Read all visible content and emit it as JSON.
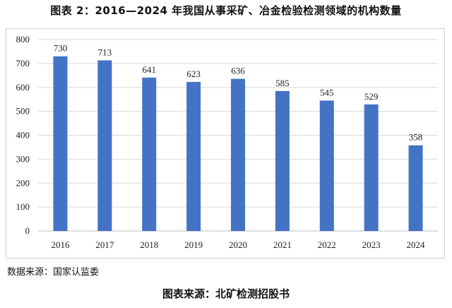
{
  "header": {
    "title": "图表 2：2016—2024 年我国从事采矿、冶金检验检测领域的机构数量"
  },
  "footer": {
    "data_source": "数据来源：国家认监委",
    "chart_source": "图表来源：北矿检测招股书"
  },
  "colors": {
    "bar": "#4472c4",
    "grid": "#d9d9d9",
    "axis": "#bfbfbf"
  },
  "chart_data": {
    "type": "bar",
    "title": "图表 2：2016—2024 年我国从事采矿、冶金检验检测领域的机构数量",
    "xlabel": "",
    "ylabel": "",
    "categories": [
      "2016",
      "2017",
      "2018",
      "2019",
      "2020",
      "2021",
      "2022",
      "2023",
      "2024"
    ],
    "values": [
      730,
      713,
      641,
      623,
      636,
      585,
      545,
      529,
      358
    ],
    "ylim": [
      0,
      800
    ],
    "yticks": [
      0,
      100,
      200,
      300,
      400,
      500,
      600,
      700,
      800
    ],
    "grid": true,
    "data_labels": true,
    "legend": "none"
  }
}
